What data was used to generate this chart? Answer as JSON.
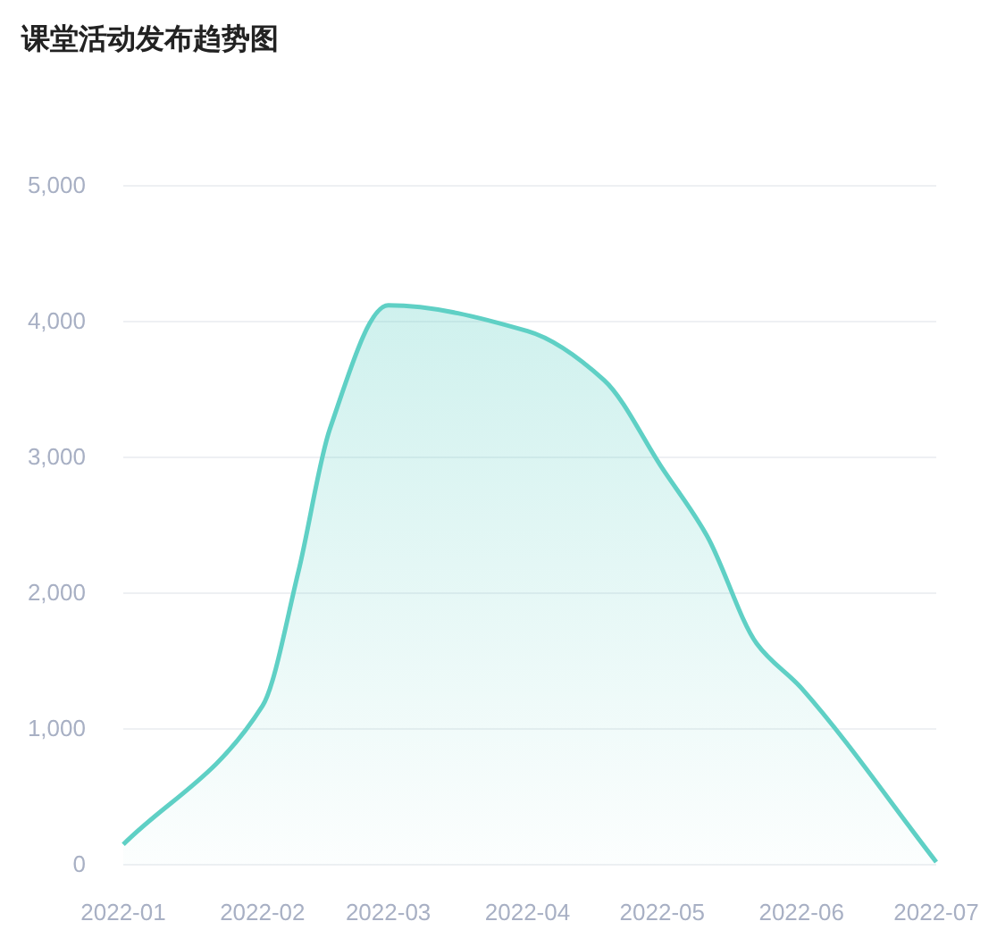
{
  "chart_data": {
    "type": "area",
    "title": "课堂活动发布趋势图",
    "x": [
      "2022-01-01",
      "2022-02-01",
      "2022-02-09",
      "2022-02-16",
      "2022-03-01",
      "2022-04-01",
      "2022-04-18",
      "2022-05-01",
      "2022-05-11",
      "2022-05-22",
      "2022-06-01",
      "2022-07-01"
    ],
    "series": [
      {
        "color": "#5fd0c5",
        "values": [
          150,
          1170,
          2160,
          3210,
          4120,
          3930,
          3570,
          2920,
          2420,
          1630,
          1300,
          20
        ]
      }
    ],
    "xlim": [
      "2022-01",
      "2022-07"
    ],
    "xticks": [
      "2022-01",
      "2022-02",
      "2022-03",
      "2022-04",
      "2022-05",
      "2022-06",
      "2022-07"
    ],
    "ylim": [
      0,
      5000
    ],
    "yticks": [
      {
        "value": 0,
        "label": "0"
      },
      {
        "value": 1000,
        "label": "1,000"
      },
      {
        "value": 2000,
        "label": "2,000"
      },
      {
        "value": 3000,
        "label": "3,000"
      },
      {
        "value": 4000,
        "label": "4,000"
      },
      {
        "value": 5000,
        "label": "5,000"
      }
    ],
    "grid": "y",
    "marker": "none",
    "line_style": "solid"
  }
}
